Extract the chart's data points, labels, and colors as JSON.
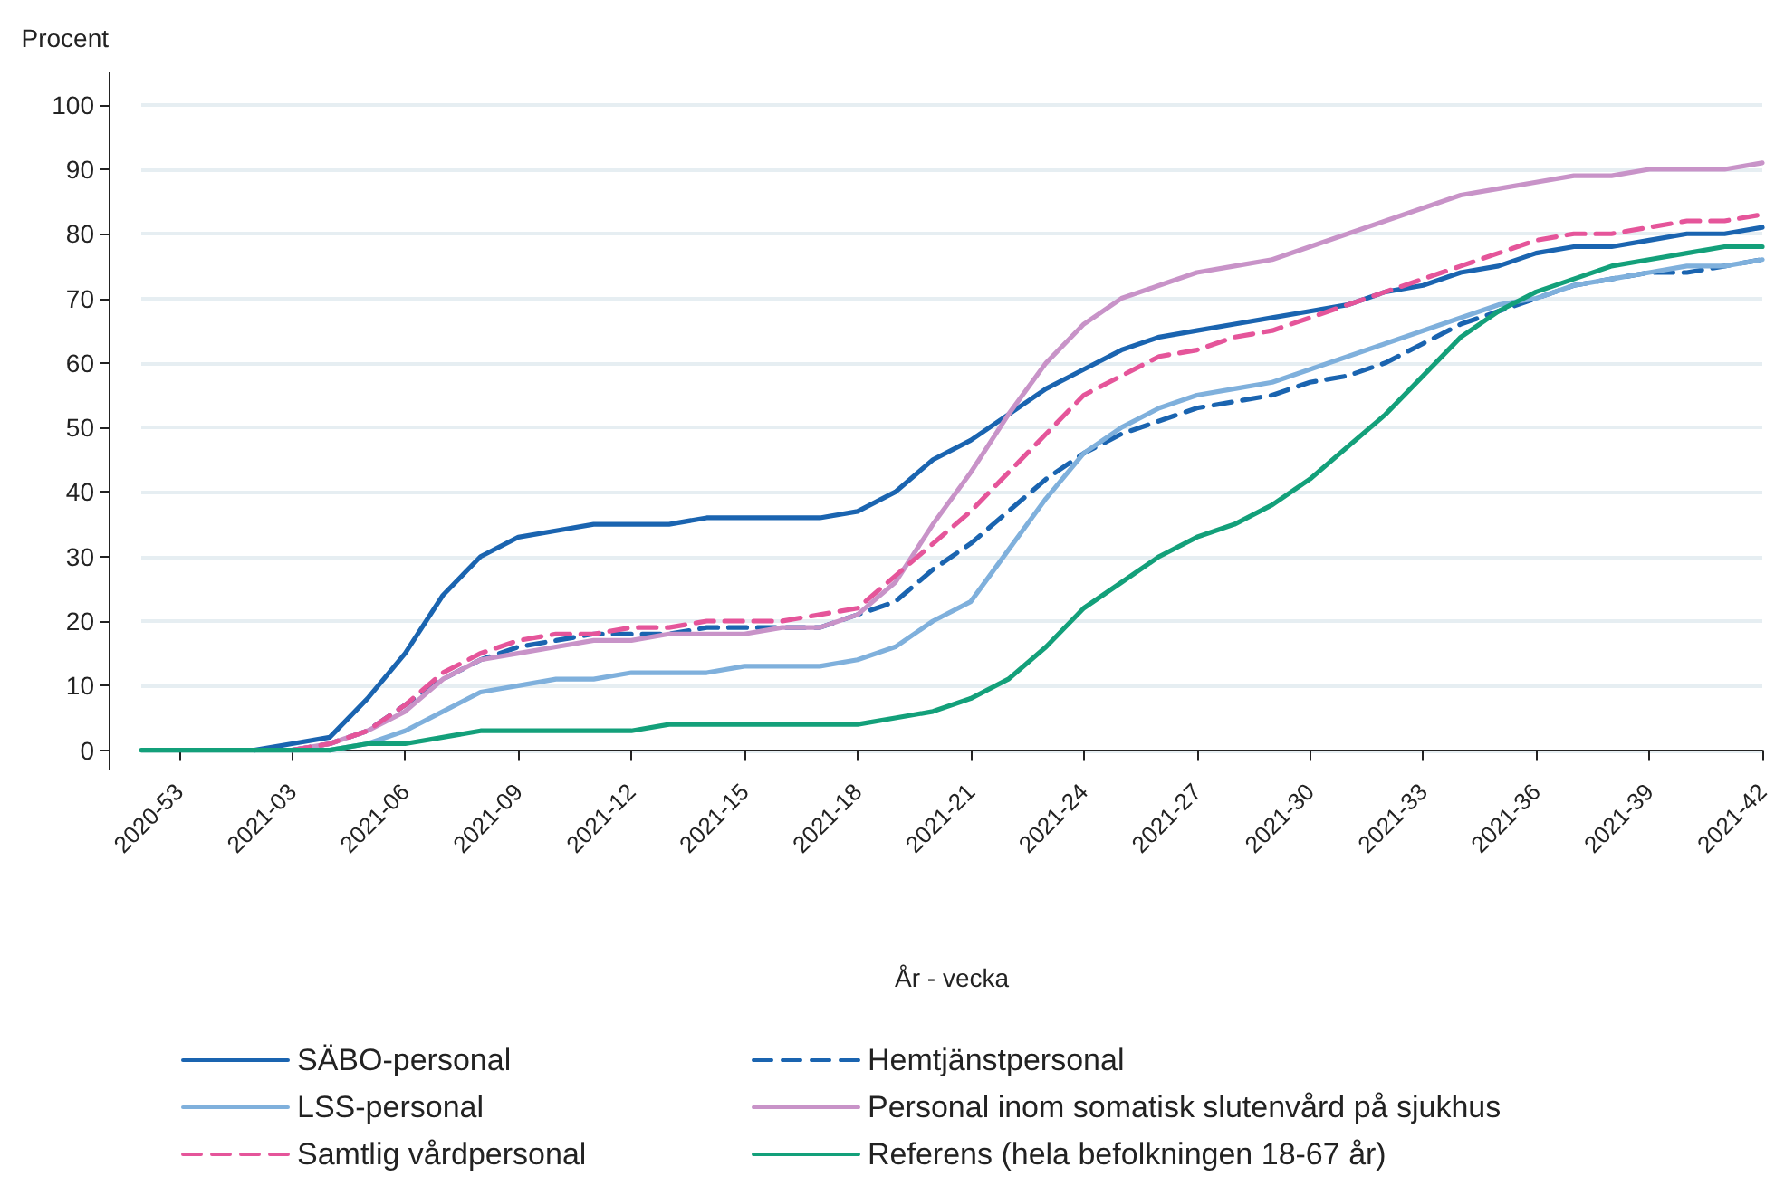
{
  "chart_data": {
    "type": "line",
    "xlabel": "År - vecka",
    "ylabel": "Procent",
    "categories": [
      null,
      "2020-53",
      null,
      null,
      "2021-03",
      null,
      null,
      "2021-06",
      null,
      null,
      "2021-09",
      null,
      null,
      "2021-12",
      null,
      null,
      "2021-15",
      null,
      null,
      "2021-18",
      null,
      null,
      "2021-21",
      null,
      null,
      "2021-24",
      null,
      null,
      "2021-27",
      null,
      null,
      "2021-30",
      null,
      null,
      "2021-33",
      null,
      null,
      "2021-36",
      null,
      null,
      "2021-39",
      null,
      null,
      "2021-42"
    ],
    "ylim": [
      -3,
      105
    ],
    "yticks": [
      0,
      10,
      20,
      30,
      40,
      50,
      60,
      70,
      80,
      90,
      100
    ],
    "grid": "y",
    "legend": "bottom",
    "marker": "none",
    "series": [
      {
        "name": "SÄBO-personal",
        "color": "#1a64b0",
        "line_style": "solid",
        "values": [
          null,
          null,
          null,
          0,
          1,
          2,
          8,
          15,
          24,
          30,
          33,
          34,
          35,
          35,
          35,
          36,
          36,
          36,
          36,
          37,
          40,
          45,
          48,
          52,
          56,
          59,
          62,
          64,
          65,
          66,
          67,
          68,
          69,
          71,
          72,
          74,
          75,
          77,
          78,
          78,
          79,
          80,
          80,
          81
        ]
      },
      {
        "name": "Hemtjänstpersonal",
        "color": "#1a64b0",
        "line_style": "dashed",
        "values": [
          null,
          null,
          null,
          null,
          0,
          1,
          3,
          7,
          11,
          14,
          16,
          17,
          18,
          18,
          18,
          19,
          19,
          19,
          19,
          21,
          23,
          28,
          32,
          37,
          42,
          46,
          49,
          51,
          53,
          54,
          55,
          57,
          58,
          60,
          63,
          66,
          68,
          70,
          72,
          73,
          74,
          74,
          75,
          76
        ]
      },
      {
        "name": "LSS-personal",
        "color": "#7fb0dc",
        "line_style": "solid",
        "values": [
          null,
          null,
          null,
          null,
          null,
          0,
          1,
          3,
          6,
          9,
          10,
          11,
          11,
          12,
          12,
          12,
          13,
          13,
          13,
          14,
          16,
          20,
          23,
          31,
          39,
          46,
          50,
          53,
          55,
          56,
          57,
          59,
          61,
          63,
          65,
          67,
          69,
          70,
          72,
          73,
          74,
          75,
          75,
          76
        ]
      },
      {
        "name": "Personal inom somatisk slutenvård på sjukhus",
        "color": "#c893c8",
        "line_style": "solid",
        "values": [
          null,
          null,
          null,
          null,
          0,
          1,
          3,
          6,
          11,
          14,
          15,
          16,
          17,
          17,
          18,
          18,
          18,
          19,
          19,
          21,
          26,
          35,
          43,
          52,
          60,
          66,
          70,
          72,
          74,
          75,
          76,
          78,
          80,
          82,
          84,
          86,
          87,
          88,
          89,
          89,
          90,
          90,
          90,
          91
        ]
      },
      {
        "name": "Samtlig vårdpersonal",
        "color": "#e5559a",
        "line_style": "dashed",
        "values": [
          null,
          null,
          null,
          null,
          0,
          1,
          3,
          7,
          12,
          15,
          17,
          18,
          18,
          19,
          19,
          20,
          20,
          20,
          21,
          22,
          27,
          32,
          37,
          43,
          49,
          55,
          58,
          61,
          62,
          64,
          65,
          67,
          69,
          71,
          73,
          75,
          77,
          79,
          80,
          80,
          81,
          82,
          82,
          83
        ]
      },
      {
        "name": "Referens (hela befolkningen 18-67 år)",
        "color": "#13a07a",
        "line_style": "solid",
        "values": [
          0,
          0,
          0,
          0,
          0,
          0,
          1,
          1,
          2,
          3,
          3,
          3,
          3,
          3,
          4,
          4,
          4,
          4,
          4,
          4,
          5,
          6,
          8,
          11,
          16,
          22,
          26,
          30,
          33,
          35,
          38,
          42,
          47,
          52,
          58,
          64,
          68,
          71,
          73,
          75,
          76,
          77,
          78,
          78
        ]
      }
    ]
  }
}
